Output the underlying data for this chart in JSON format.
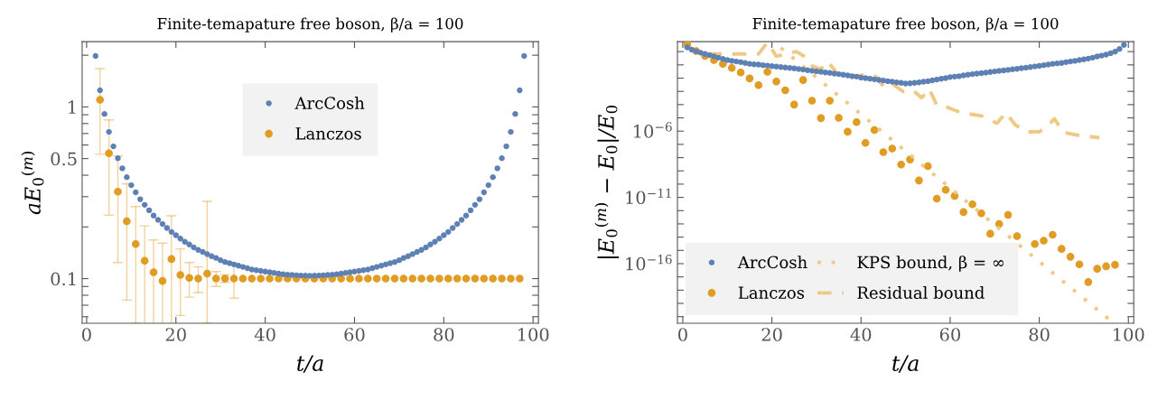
{
  "chart_data": [
    {
      "type": "scatter",
      "title": "Finite-temapature free boson, β/a = 100",
      "xlabel": "t/a",
      "ylabel": "aE$_{0}$$^{(m)}$",
      "log": "y",
      "grid": false,
      "legend": "top",
      "marker": "circle",
      "xlim": [
        -1,
        101.2
      ],
      "xticks": [
        0,
        20,
        40,
        60,
        80,
        100
      ],
      "ylim": [
        0.055,
        2.4
      ],
      "yticks": [
        {
          "value": 0.06,
          "label": null
        },
        {
          "value": 0.07,
          "label": null
        },
        {
          "value": 0.08,
          "label": null
        },
        {
          "value": 0.09,
          "label": null
        },
        {
          "value": 0.1,
          "label": "0.1"
        },
        {
          "value": 0.2,
          "label": null
        },
        {
          "value": 0.3,
          "label": null
        },
        {
          "value": 0.4,
          "label": null
        },
        {
          "value": 0.5,
          "label": "0.5"
        },
        {
          "value": 0.6,
          "label": null
        },
        {
          "value": 0.7,
          "label": null
        },
        {
          "value": 0.8,
          "label": null
        },
        {
          "value": 0.9,
          "label": null
        },
        {
          "value": 1,
          "label": "1"
        },
        {
          "value": 2,
          "label": null
        }
      ],
      "series": [
        {
          "name": "ArcCosh",
          "color": "#5e81b5",
          "x": [
            2,
            3,
            4,
            5,
            6,
            7,
            8,
            9,
            10,
            11,
            12,
            13,
            14,
            15,
            16,
            17,
            18,
            19,
            20,
            21,
            22,
            23,
            24,
            25,
            26,
            27,
            28,
            29,
            30,
            31,
            32,
            33,
            34,
            35,
            36,
            37,
            38,
            39,
            40,
            41,
            42,
            43,
            44,
            45,
            46,
            47,
            48,
            49,
            50,
            51,
            52,
            53,
            54,
            55,
            56,
            57,
            58,
            59,
            60,
            61,
            62,
            63,
            64,
            65,
            66,
            67,
            68,
            69,
            70,
            71,
            72,
            73,
            74,
            75,
            76,
            77,
            78,
            79,
            80,
            81,
            82,
            83,
            84,
            85,
            86,
            87,
            88,
            89,
            90,
            91,
            92,
            93,
            94,
            95,
            96,
            97,
            98
          ],
          "values": [
            1.98,
            1.25,
            0.91,
            0.715,
            0.589,
            0.503,
            0.439,
            0.39,
            0.35,
            0.318,
            0.29,
            0.269,
            0.25,
            0.233,
            0.22,
            0.208,
            0.197,
            0.187,
            0.179,
            0.171,
            0.164,
            0.158,
            0.152,
            0.147,
            0.143,
            0.139,
            0.135,
            0.132,
            0.128,
            0.125,
            0.123,
            0.121,
            0.119,
            0.117,
            0.115,
            0.113,
            0.112,
            0.111,
            0.11,
            0.109,
            0.108,
            0.107,
            0.106,
            0.1055,
            0.105,
            0.1046,
            0.1043,
            0.1041,
            0.104,
            0.1041,
            0.1043,
            0.1046,
            0.105,
            0.1055,
            0.106,
            0.107,
            0.108,
            0.109,
            0.11,
            0.111,
            0.112,
            0.113,
            0.115,
            0.117,
            0.119,
            0.121,
            0.123,
            0.125,
            0.128,
            0.132,
            0.135,
            0.139,
            0.143,
            0.147,
            0.152,
            0.158,
            0.164,
            0.171,
            0.179,
            0.187,
            0.197,
            0.208,
            0.22,
            0.233,
            0.25,
            0.269,
            0.29,
            0.318,
            0.35,
            0.39,
            0.439,
            0.503,
            0.589,
            0.715,
            0.91,
            1.25,
            1.98
          ]
        },
        {
          "name": "Lanczos",
          "color": "#e19c24",
          "x": [
            3,
            5,
            7,
            9,
            11,
            13,
            15,
            17,
            19,
            21,
            23,
            25,
            27,
            29,
            31,
            33,
            35,
            37,
            39,
            41,
            43,
            45,
            47,
            49,
            51,
            53,
            55,
            57,
            59,
            61,
            63,
            65,
            67,
            69,
            71,
            73,
            75,
            77,
            79,
            81,
            83,
            85,
            87,
            89,
            91,
            93,
            95,
            97
          ],
          "values": [
            1.1,
            0.537,
            0.321,
            0.216,
            0.159,
            0.127,
            0.109,
            0.097,
            0.13,
            0.105,
            0.101,
            0.1,
            0.107,
            0.1,
            0.1,
            0.1,
            0.1,
            0.1,
            0.1,
            0.1,
            0.1,
            0.1,
            0.1,
            0.1,
            0.1,
            0.1,
            0.1,
            0.1,
            0.1,
            0.1,
            0.1,
            0.1,
            0.1,
            0.1,
            0.1,
            0.1,
            0.1,
            0.1,
            0.1,
            0.1,
            0.1,
            0.1,
            0.1,
            0.1,
            0.1,
            0.1,
            0.1,
            0.1
          ],
          "errors": [
            0.57,
            0.303,
            0.197,
            0.141,
            0.104,
            0.076,
            0.059,
            0.064,
            0.102,
            0.044,
            0.023,
            0.017,
            [
              0.055,
              0.282
            ],
            0.01,
            0.005,
            0.023,
            null,
            null,
            null,
            null,
            null,
            null,
            null,
            null,
            null,
            null,
            null,
            null,
            null,
            null,
            null,
            null,
            null,
            null,
            null,
            null,
            null,
            null,
            null,
            null,
            null,
            null,
            null,
            null,
            null,
            null,
            null,
            null
          ]
        }
      ]
    },
    {
      "type": "scatter",
      "title": "Finite-temapature free boson, β/a = 100",
      "xlabel": "t/a",
      "ylabel": "|E$_{0}$$^{(m)}$ − E$_{0}$|/E$_{0}$",
      "log": "y",
      "grid": false,
      "legend": "bottom left",
      "marker": "circle",
      "xlim": [
        -1.2,
        101.2
      ],
      "xticks": [
        0,
        20,
        40,
        60,
        80,
        100
      ],
      "ylim": [
        3.2e-21,
        5.7
      ],
      "yticks": [
        {
          "value": 1e-20,
          "label": null
        },
        {
          "value": 1e-19,
          "label": null
        },
        {
          "value": 1e-18,
          "label": null
        },
        {
          "value": 1e-17,
          "label": null
        },
        {
          "value": 1e-16,
          "label": "10$^{−16}$"
        },
        {
          "value": 1e-15,
          "label": null
        },
        {
          "value": 1e-14,
          "label": null
        },
        {
          "value": 1e-13,
          "label": null
        },
        {
          "value": 1e-12,
          "label": null
        },
        {
          "value": 1e-11,
          "label": "10$^{−11}$"
        },
        {
          "value": 1e-10,
          "label": null
        },
        {
          "value": 1e-09,
          "label": null
        },
        {
          "value": 1e-08,
          "label": null
        },
        {
          "value": 1e-07,
          "label": null
        },
        {
          "value": 1e-06,
          "label": "10$^{−6}$"
        },
        {
          "value": 1e-05,
          "label": null
        },
        {
          "value": 0.0001,
          "label": null
        },
        {
          "value": 0.001,
          "label": null
        },
        {
          "value": 0.01,
          "label": null
        },
        {
          "value": 0.1,
          "label": null
        },
        {
          "value": 1,
          "label": null
        }
      ],
      "series": [
        {
          "name": "ArcCosh",
          "color": "#5e81b5",
          "x": [
            1,
            2,
            3,
            4,
            5,
            6,
            7,
            8,
            9,
            10,
            11,
            12,
            13,
            14,
            15,
            16,
            17,
            18,
            19,
            20,
            21,
            22,
            23,
            24,
            25,
            26,
            27,
            28,
            29,
            30,
            31,
            32,
            33,
            34,
            35,
            36,
            37,
            38,
            39,
            40,
            41,
            42,
            43,
            44,
            45,
            46,
            47,
            48,
            49,
            50,
            51,
            52,
            53,
            54,
            55,
            56,
            57,
            58,
            59,
            60,
            61,
            62,
            63,
            64,
            65,
            66,
            67,
            68,
            69,
            70,
            71,
            72,
            73,
            74,
            75,
            76,
            77,
            78,
            79,
            80,
            81,
            82,
            83,
            84,
            85,
            86,
            87,
            88,
            89,
            90,
            91,
            92,
            93,
            94,
            95,
            96,
            97,
            98,
            99
          ],
          "values": [
            2.09,
            1.41,
            1.05,
            0.83,
            0.66,
            0.54,
            0.44,
            0.35,
            0.28,
            0.23,
            0.2,
            0.18,
            0.16,
            0.14,
            0.12,
            0.11,
            0.105,
            0.095,
            0.089,
            0.081,
            0.074,
            0.069,
            0.063,
            0.059,
            0.054,
            0.049,
            0.044,
            0.04,
            0.036,
            0.033,
            0.03,
            0.027,
            0.025,
            0.022,
            0.02,
            0.018,
            0.016,
            0.014,
            0.013,
            0.011,
            0.01,
            0.0091,
            0.0081,
            0.0074,
            0.0066,
            0.0059,
            0.0054,
            0.0048,
            0.0044,
            0.0039,
            0.0041,
            0.0044,
            0.0048,
            0.0054,
            0.0059,
            0.0068,
            0.0078,
            0.0089,
            0.01,
            0.012,
            0.013,
            0.014,
            0.016,
            0.018,
            0.02,
            0.022,
            0.024,
            0.026,
            0.029,
            0.032,
            0.035,
            0.038,
            0.042,
            0.046,
            0.05,
            0.056,
            0.062,
            0.069,
            0.076,
            0.085,
            0.095,
            0.105,
            0.12,
            0.13,
            0.14,
            0.16,
            0.18,
            0.2,
            0.23,
            0.26,
            0.3,
            0.35,
            0.43,
            0.5,
            0.59,
            0.76,
            1.0,
            1.6,
            3.2
          ]
        },
        {
          "name": "Lanczos",
          "color": "#e19c24",
          "x": [
            1,
            3,
            5,
            7,
            9,
            11,
            13,
            15,
            17,
            19,
            21,
            23,
            25,
            27,
            29,
            31,
            33,
            35,
            37,
            39,
            41,
            43,
            45,
            47,
            49,
            51,
            53,
            55,
            57,
            59,
            61,
            63,
            65,
            67,
            69,
            71,
            73,
            75,
            77,
            79,
            81,
            83,
            85,
            87,
            89,
            91,
            93,
            95,
            97
          ],
          "values": [
            3.5,
            1.1,
            0.48,
            0.23,
            0.12,
            0.059,
            0.027,
            0.0095,
            0.003,
            0.03,
            0.0056,
            0.0012,
            0.0001,
            0.0072,
            0.0002,
            9.5e-06,
            0.0002,
            1e-05,
            9e-07,
            4.8e-06,
            1.3e-07,
            1.2e-06,
            2.6e-08,
            4.8e-08,
            3e-09,
            7.2e-09,
            1.9e-10,
            2.3e-09,
            8.1e-12,
            3.7e-11,
            1.3e-11,
            7.8e-13,
            3e-12,
            6.3e-13,
            1.8e-14,
            1e-13,
            4.8e-13,
            1.2e-14,
            null,
            3e-15,
            5.4e-15,
            1.5e-14,
            1.3e-15,
            3.3e-16,
            8.9e-17,
            4.1e-18,
            4.1e-17,
            6.3e-17,
            8.1e-17
          ]
        },
        {
          "name": "KPS bound, β = ∞",
          "type": "line",
          "line_style": "dotted",
          "marker": "none",
          "color": "#f0c987",
          "x": [
            22,
            96
          ],
          "values": [
            1.9,
            5e-21
          ]
        },
        {
          "name": "Residual bound",
          "type": "line",
          "line_style": "dashed",
          "marker": "none",
          "color": "#f0c987",
          "x": [
            5.6,
            12,
            17,
            19,
            21,
            23.5,
            25.5,
            27.5,
            29,
            31,
            32.6,
            34.6,
            37.4,
            40.5,
            43.4,
            45.1,
            47.1,
            49.5,
            51.6,
            53.6,
            55.3,
            57,
            59,
            62.4,
            67.1,
            70.5,
            72.5,
            74.6,
            77.3,
            80,
            82.1,
            83.4,
            85.4,
            88.8,
            93.5
          ],
          "values": [
            0.66,
            0.66,
            0.66,
            5.0,
            0.44,
            0.72,
            1.0,
            0.39,
            0.081,
            0.048,
            0.18,
            0.022,
            0.013,
            0.017,
            0.013,
            0.0021,
            0.0035,
            0.00095,
            0.0012,
            0.00033,
            0.0016,
            8.9e-05,
            6.9e-05,
            2.5e-05,
            1.4e-05,
            3.9e-06,
            2.5e-05,
            3e-06,
            8.9e-07,
            8.9e-07,
            3e-06,
            8.5e-06,
            8.1e-07,
            4.8e-07,
            3.2e-07
          ]
        }
      ]
    }
  ]
}
